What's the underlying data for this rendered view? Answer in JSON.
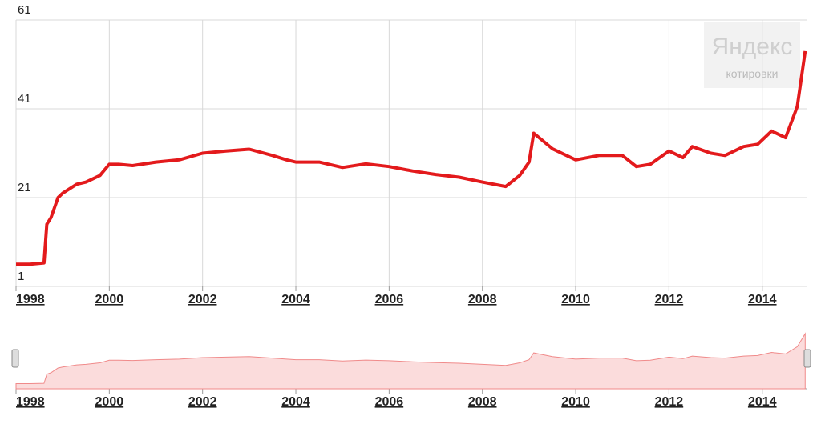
{
  "chart_data": {
    "type": "line",
    "x": [
      1998.0,
      1998.3,
      1998.6,
      1998.66,
      1998.75,
      1998.9,
      1999.0,
      1999.3,
      1999.5,
      1999.8,
      2000.0,
      2000.2,
      2000.5,
      2001.0,
      2001.5,
      2002.0,
      2002.5,
      2003.0,
      2003.5,
      2003.8,
      2004.0,
      2004.5,
      2005.0,
      2005.5,
      2006.0,
      2006.5,
      2007.0,
      2007.5,
      2008.0,
      2008.5,
      2008.8,
      2009.0,
      2009.1,
      2009.5,
      2010.0,
      2010.5,
      2011.0,
      2011.3,
      2011.6,
      2012.0,
      2012.3,
      2012.5,
      2012.9,
      2013.2,
      2013.6,
      2013.9,
      2014.2,
      2014.5,
      2014.75,
      2014.92
    ],
    "values": [
      6,
      6,
      6.3,
      15,
      16.5,
      21,
      22,
      24,
      24.5,
      26,
      28.5,
      28.5,
      28.2,
      29,
      29.5,
      31,
      31.5,
      31.9,
      30.5,
      29.5,
      29,
      29,
      27.8,
      28.6,
      28,
      27,
      26.2,
      25.6,
      24.5,
      23.5,
      26,
      29,
      35.5,
      32,
      29.5,
      30.5,
      30.5,
      28,
      28.5,
      31.5,
      30,
      32.5,
      31,
      30.5,
      32.5,
      33,
      36,
      34.5,
      41.5,
      54
    ],
    "color": "#e31a1c",
    "xlim": [
      1998,
      2014.95
    ],
    "ylim": [
      1,
      61
    ],
    "xticks": [
      1998,
      2000,
      2002,
      2004,
      2006,
      2008,
      2010,
      2012,
      2014
    ],
    "yticks": [
      1,
      21,
      41,
      61
    ],
    "grid": true,
    "watermark": {
      "title": "Яндекс",
      "subtitle": "котировки"
    }
  }
}
